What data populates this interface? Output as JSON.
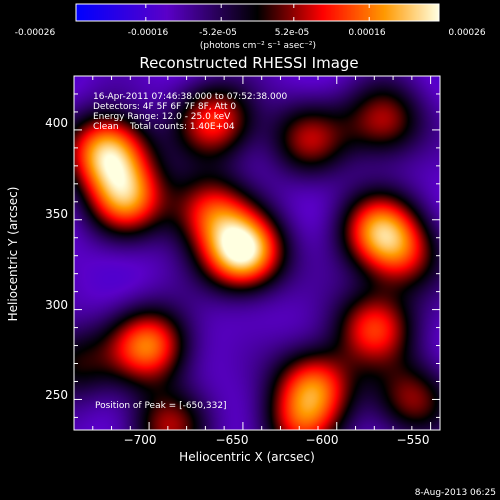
{
  "colorbar": {
    "ticks": [
      "-0.00026",
      "-0.00016",
      "-5.2e-05",
      "5.2e-05",
      "0.00016",
      "0.00026"
    ],
    "unit_label": "(photons cm⁻² s⁻¹ asec⁻²)",
    "colormap": [
      "#0000ff",
      "#5a00c8",
      "#000000",
      "#ff0000",
      "#ff9900",
      "#ffffe0"
    ]
  },
  "info_lines": [
    "16-Apr-2011 07:46:38.000 to 07:52:38.000",
    "Detectors: 4F 5F 6F 7F 8F, Att 0",
    "Energy Range: 12.0 - 25.0 keV",
    "Clean    Total counts: 1.40E+04"
  ],
  "peak_label": "Position of Peak = [-650,332]",
  "footer_date": "8-Aug-2013 06:25",
  "chart_data": {
    "type": "heatmap",
    "title": "Reconstructed RHESSI Image",
    "xlabel": "Heliocentric X (arcsec)",
    "ylabel": "Heliocentric Y (arcsec)",
    "xlim": [
      -740,
      -545
    ],
    "ylim": [
      233,
      430
    ],
    "xticks": [
      -700,
      -650,
      -600,
      -550
    ],
    "yticks": [
      250,
      300,
      350,
      400
    ],
    "xtick_labels": [
      "−700",
      "−650",
      "−600",
      "−550"
    ],
    "ytick_labels": [
      "250",
      "300",
      "350",
      "400"
    ],
    "peak": [
      -650,
      332
    ],
    "colorbar_range": [
      -0.00026,
      0.00026
    ],
    "sources": [
      {
        "x": -650,
        "y": 332,
        "value": 1.0
      },
      {
        "x": -722,
        "y": 388,
        "value": 0.85
      },
      {
        "x": -712,
        "y": 362,
        "value": 0.7
      },
      {
        "x": -700,
        "y": 280,
        "value": 0.72
      },
      {
        "x": -690,
        "y": 235,
        "value": 0.45
      },
      {
        "x": -665,
        "y": 405,
        "value": 0.6
      },
      {
        "x": -668,
        "y": 355,
        "value": 0.55
      },
      {
        "x": -615,
        "y": 395,
        "value": 0.45
      },
      {
        "x": -612,
        "y": 258,
        "value": 0.65
      },
      {
        "x": -620,
        "y": 235,
        "value": 0.45
      },
      {
        "x": -575,
        "y": 405,
        "value": 0.5
      },
      {
        "x": -578,
        "y": 345,
        "value": 0.65
      },
      {
        "x": -565,
        "y": 330,
        "value": 0.45
      },
      {
        "x": -580,
        "y": 290,
        "value": 0.6
      },
      {
        "x": -560,
        "y": 250,
        "value": 0.45
      },
      {
        "x": -740,
        "y": 270,
        "value": 0.35
      }
    ]
  }
}
